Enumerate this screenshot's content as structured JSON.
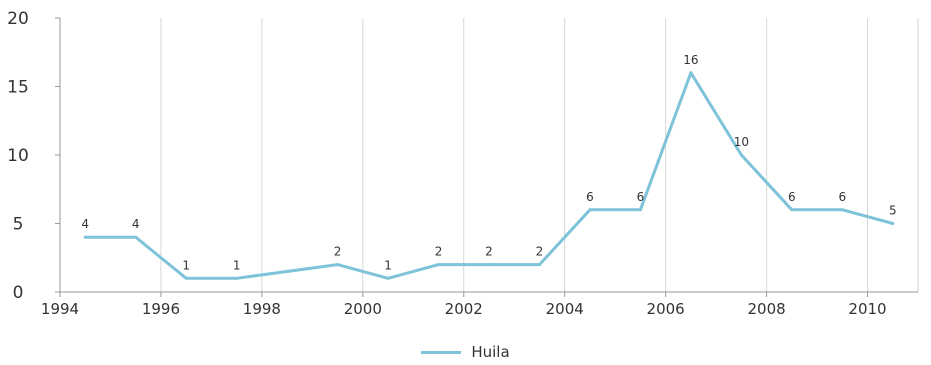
{
  "chart_data": {
    "type": "line",
    "title": "",
    "xlabel": "",
    "ylabel": "",
    "xlim": [
      1994,
      2011
    ],
    "ylim": [
      0,
      20
    ],
    "x_ticks": [
      "1994",
      "1996",
      "1998",
      "2000",
      "2002",
      "2004",
      "2006",
      "2008",
      "2010"
    ],
    "y_ticks": [
      "0",
      "5",
      "10",
      "15",
      "20"
    ],
    "grid": "vertical",
    "legend_position": "bottom",
    "series": [
      {
        "name": "Huila",
        "color": "#7ec3d9",
        "x": [
          1994.5,
          1995.5,
          1996.5,
          1997.5,
          1999.5,
          2000.5,
          2001.5,
          2002.5,
          2003.5,
          2004.5,
          2005.5,
          2006.5,
          2007.5,
          2008.5,
          2009.5,
          2010.5
        ],
        "values": [
          4,
          4,
          1,
          1,
          2,
          1,
          2,
          2,
          2,
          6,
          6,
          16,
          10,
          6,
          6,
          5
        ],
        "data_labels": [
          "4",
          "4",
          "1",
          "1",
          "2",
          "1",
          "2",
          "2",
          "2",
          "6",
          "6",
          "16",
          "10",
          "6",
          "6",
          "5"
        ]
      }
    ]
  }
}
